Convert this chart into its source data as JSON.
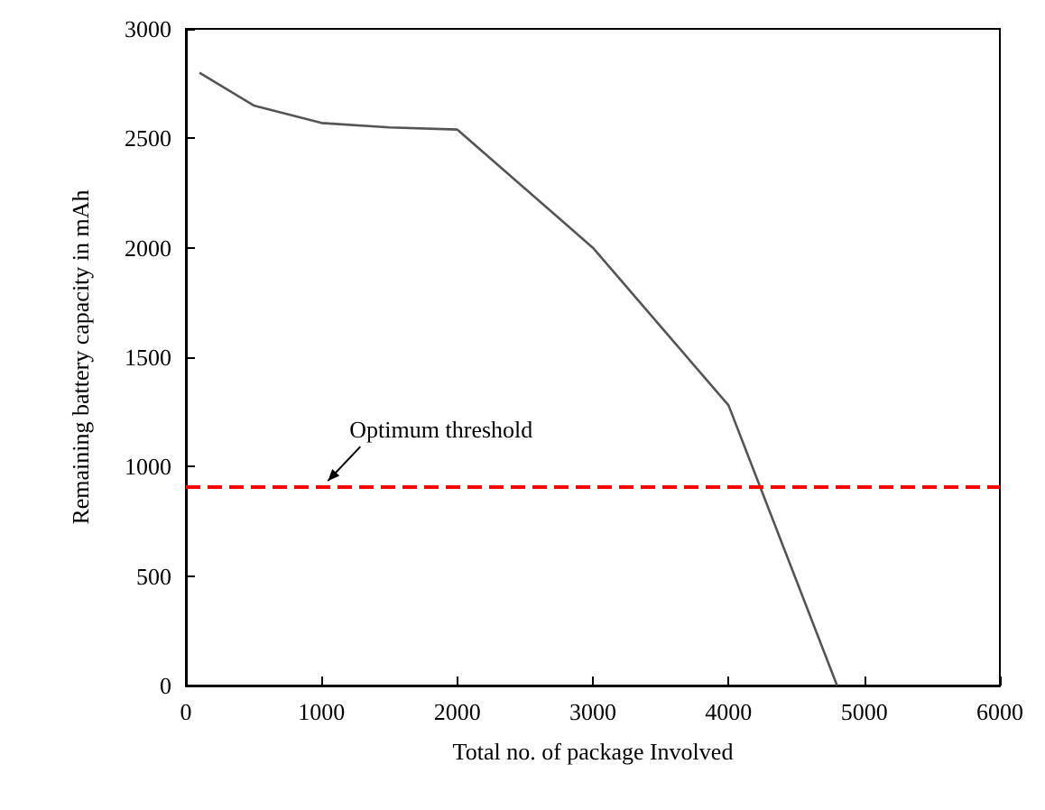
{
  "chart_data": {
    "type": "line",
    "xlabel": "Total no. of package Involved",
    "ylabel": "Remaining battery capacity in mAh",
    "x": [
      100,
      500,
      1000,
      1500,
      2000,
      3000,
      4000,
      4800
    ],
    "series": [
      {
        "color": "#555555",
        "values": [
          2800,
          2650,
          2570,
          2550,
          2540,
          2000,
          1280,
          0
        ]
      }
    ],
    "xlim": [
      0,
      6000
    ],
    "xticks": [
      0,
      1000,
      2000,
      3000,
      4000,
      5000,
      6000
    ],
    "ylim": [
      0,
      3000
    ],
    "yticks": [
      0,
      500,
      1000,
      1500,
      2000,
      2500,
      3000
    ],
    "ref_lines": [
      {
        "axis": "y",
        "value": 910,
        "label": "Optimum threshold",
        "color": "#ff0000",
        "line_style": "dashed"
      }
    ],
    "grid": false,
    "marker": "none",
    "line_style": "solid"
  }
}
